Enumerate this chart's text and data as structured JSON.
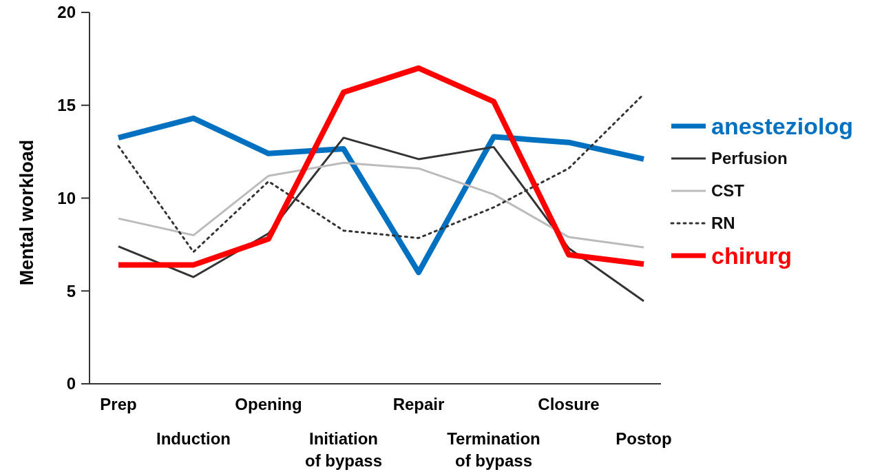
{
  "chart_data": {
    "type": "line",
    "ylabel": "Mental workload",
    "categories": [
      "Prep",
      "Induction",
      "Opening",
      "Initiation of bypass",
      "Repair",
      "Termination of bypass",
      "Closure",
      "Postop"
    ],
    "ylim": [
      0,
      20
    ],
    "yticks": [
      0,
      5,
      10,
      15,
      20
    ],
    "legend": "right",
    "grid": false,
    "series": [
      {
        "name": "anesteziolog",
        "color": "#0070c0",
        "values": [
          13.25,
          14.3,
          12.4,
          12.65,
          6.0,
          13.3,
          13.0,
          12.1
        ]
      },
      {
        "name": "Perfusion",
        "color": "#333333",
        "values": [
          7.4,
          5.75,
          8.1,
          13.25,
          12.1,
          12.75,
          7.3,
          4.45
        ]
      },
      {
        "name": "CST",
        "color": "#bbbbbb",
        "values": [
          8.9,
          8.0,
          11.2,
          11.9,
          11.6,
          10.2,
          7.9,
          7.35
        ]
      },
      {
        "name": "RN",
        "color": "#333333",
        "line_style": "dotted",
        "values": [
          12.8,
          7.1,
          10.9,
          8.25,
          7.85,
          9.5,
          11.6,
          15.6
        ]
      },
      {
        "name": "chirurg",
        "color": "#ff0000",
        "values": [
          6.4,
          6.4,
          7.8,
          15.7,
          17.0,
          15.2,
          6.95,
          6.45
        ]
      }
    ]
  }
}
